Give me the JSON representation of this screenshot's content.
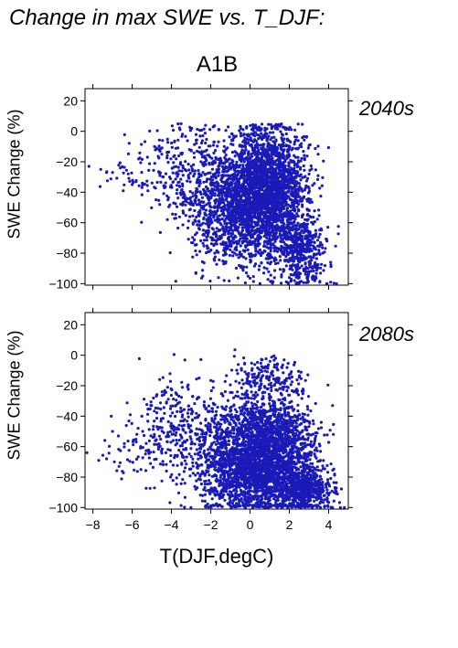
{
  "page": {
    "title": "Change in max SWE vs. T_DJF:",
    "scenario": "A1B",
    "xlabel": "T(DJF,degC)"
  },
  "colors": {
    "points": "#1a1ab8",
    "period_label": "#1a1ab8",
    "axis": "#000000"
  },
  "chart_data": [
    {
      "type": "scatter",
      "panel_label": "2040s",
      "xlabel": "T(DJF,degC)",
      "ylabel": "SWE Change (%)",
      "xlim": [
        -8.4,
        5.0
      ],
      "ylim": [
        -101,
        28
      ],
      "xticks": [
        -8,
        -6,
        -4,
        -2,
        0,
        2,
        4
      ],
      "yticks": [
        20,
        0,
        -20,
        -40,
        -60,
        -80,
        -100
      ],
      "ytick_labels": [
        "20",
        "0",
        "−20",
        "−40",
        "−60",
        "−80",
        "−100"
      ],
      "show_xtick_labels": false,
      "grid": false,
      "clusters": [
        {
          "cx": 0.9,
          "cy": -35,
          "sx": 1.0,
          "sy": 20,
          "n": 1900
        },
        {
          "cx": 0.0,
          "cy": -55,
          "sx": 1.2,
          "sy": 18,
          "n": 900
        },
        {
          "cx": 2.6,
          "cy": -80,
          "sx": 0.6,
          "sy": 12,
          "n": 450
        },
        {
          "cx": -1.6,
          "cy": -45,
          "sx": 0.9,
          "sy": 20,
          "n": 500
        },
        {
          "cx": -3.5,
          "cy": -25,
          "sx": 1.0,
          "sy": 16,
          "n": 220
        },
        {
          "cx": -5.8,
          "cy": -30,
          "sx": 1.0,
          "sy": 8,
          "n": 40
        }
      ],
      "outliers": [
        [
          -8.2,
          -23
        ],
        [
          -7.6,
          -25
        ],
        [
          -7.3,
          -27
        ],
        [
          -7.0,
          -27
        ],
        [
          -6.6,
          -24
        ],
        [
          -6.2,
          -28
        ],
        [
          -5.8,
          -33
        ],
        [
          -5.5,
          -37
        ],
        [
          -5.2,
          -39
        ],
        [
          -4.6,
          -48
        ],
        [
          -2.4,
          -68
        ],
        [
          -1.8,
          -80
        ],
        [
          0.7,
          -93
        ],
        [
          2.0,
          -96
        ],
        [
          3.3,
          -98
        ],
        [
          3.9,
          -100
        ],
        [
          4.1,
          -99
        ],
        [
          4.4,
          -100
        ],
        [
          3.5,
          -78
        ],
        [
          4.1,
          -86
        ]
      ]
    },
    {
      "type": "scatter",
      "panel_label": "2080s",
      "xlabel": "T(DJF,degC)",
      "ylabel": "SWE Change (%)",
      "xlim": [
        -8.4,
        5.0
      ],
      "ylim": [
        -101,
        28
      ],
      "xticks": [
        -8,
        -6,
        -4,
        -2,
        0,
        2,
        4
      ],
      "xtick_labels": [
        "−8",
        "−6",
        "−4",
        "−2",
        "0",
        "2",
        "4"
      ],
      "yticks": [
        20,
        0,
        -20,
        -40,
        -60,
        -80,
        -100
      ],
      "ytick_labels": [
        "20",
        "0",
        "−20",
        "−40",
        "−60",
        "−80",
        "−100"
      ],
      "show_xtick_labels": true,
      "grid": false,
      "clusters": [
        {
          "cx": 1.0,
          "cy": -62,
          "sx": 1.1,
          "sy": 18,
          "n": 1900
        },
        {
          "cx": 0.3,
          "cy": -80,
          "sx": 1.3,
          "sy": 12,
          "n": 900
        },
        {
          "cx": 2.8,
          "cy": -88,
          "sx": 0.7,
          "sy": 8,
          "n": 450
        },
        {
          "cx": -1.4,
          "cy": -62,
          "sx": 1.0,
          "sy": 17,
          "n": 500
        },
        {
          "cx": -3.9,
          "cy": -48,
          "sx": 1.0,
          "sy": 18,
          "n": 260
        },
        {
          "cx": 0.8,
          "cy": -15,
          "sx": 0.8,
          "sy": 7,
          "n": 160
        },
        {
          "cx": -5.8,
          "cy": -62,
          "sx": 0.8,
          "sy": 8,
          "n": 40
        }
      ],
      "outliers": [
        [
          -8.3,
          -64
        ],
        [
          -7.7,
          -69
        ],
        [
          -7.3,
          -68
        ],
        [
          -7.0,
          -50
        ],
        [
          -6.7,
          -53
        ],
        [
          -6.4,
          -58
        ],
        [
          -4.6,
          -16
        ],
        [
          -4.2,
          -21
        ],
        [
          0.6,
          -3
        ],
        [
          1.3,
          -2
        ],
        [
          3.8,
          -99
        ],
        [
          4.2,
          -100
        ],
        [
          4.6,
          -100
        ],
        [
          4.8,
          -100
        ],
        [
          4.3,
          -78
        ]
      ]
    }
  ]
}
